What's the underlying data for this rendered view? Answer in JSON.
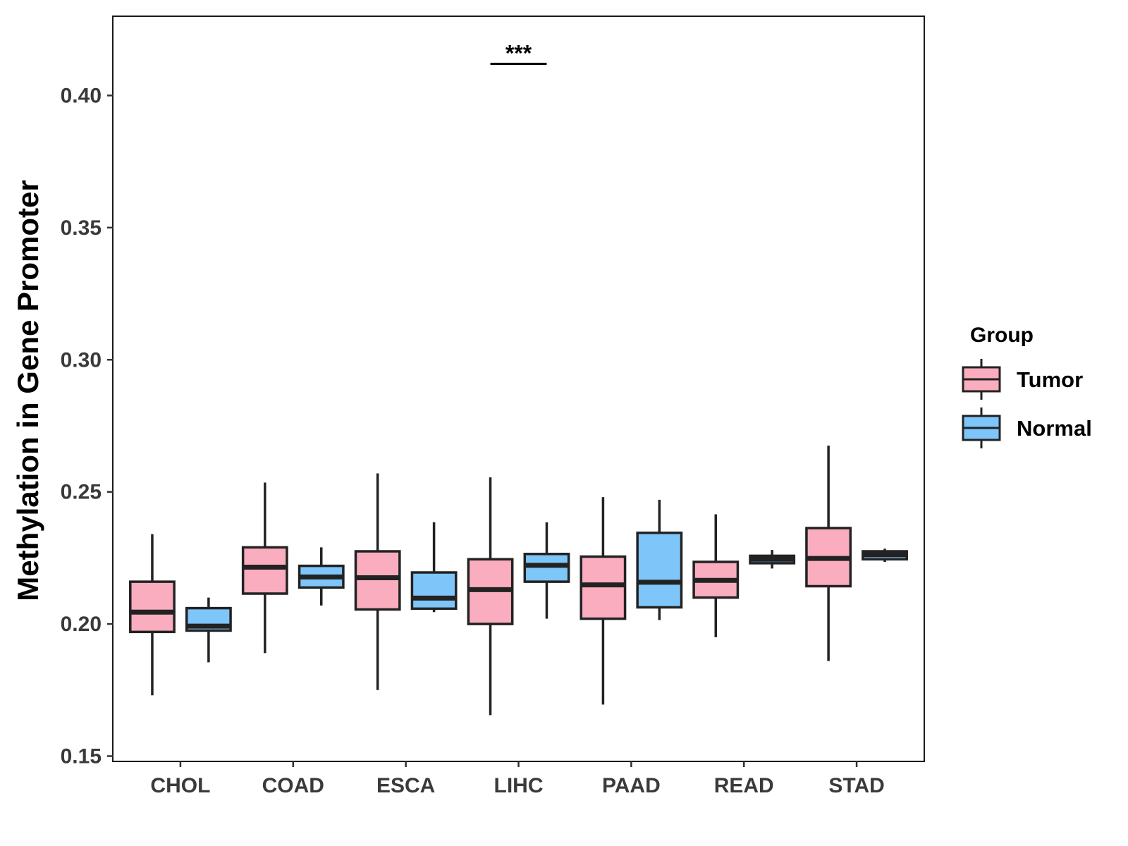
{
  "chart_data": {
    "type": "boxplot",
    "title": "",
    "xlabel": "",
    "ylabel": "Methylation in Gene Promoter",
    "ylim": [
      0.148,
      0.43
    ],
    "yticks": [
      "0.15",
      "0.20",
      "0.25",
      "0.30",
      "0.35",
      "0.40"
    ],
    "ytick_values": [
      0.15,
      0.2,
      0.25,
      0.3,
      0.35,
      0.4
    ],
    "categories": [
      "CHOL",
      "COAD",
      "ESCA",
      "LIHC",
      "PAAD",
      "READ",
      "STAD"
    ],
    "grid": false,
    "legend": {
      "title": "Group",
      "position": "right",
      "entries": [
        {
          "name": "Tumor",
          "color": "#f9adbf"
        },
        {
          "name": "Normal",
          "color": "#7ec5f9"
        }
      ]
    },
    "series": [
      {
        "name": "Tumor",
        "color": "#f9adbf",
        "boxes": [
          {
            "category": "CHOL",
            "whisker_low": 0.173,
            "q1": 0.197,
            "median": 0.2045,
            "q3": 0.216,
            "whisker_high": 0.234
          },
          {
            "category": "COAD",
            "whisker_low": 0.189,
            "q1": 0.2115,
            "median": 0.2215,
            "q3": 0.229,
            "whisker_high": 0.2535
          },
          {
            "category": "ESCA",
            "whisker_low": 0.175,
            "q1": 0.2055,
            "median": 0.2175,
            "q3": 0.2275,
            "whisker_high": 0.257
          },
          {
            "category": "LIHC",
            "whisker_low": 0.1655,
            "q1": 0.2,
            "median": 0.213,
            "q3": 0.2245,
            "whisker_high": 0.2555
          },
          {
            "category": "PAAD",
            "whisker_low": 0.1695,
            "q1": 0.202,
            "median": 0.2148,
            "q3": 0.2255,
            "whisker_high": 0.248
          },
          {
            "category": "READ",
            "whisker_low": 0.195,
            "q1": 0.21,
            "median": 0.2165,
            "q3": 0.2235,
            "whisker_high": 0.2415
          },
          {
            "category": "STAD",
            "whisker_low": 0.186,
            "q1": 0.2143,
            "median": 0.2248,
            "q3": 0.2363,
            "whisker_high": 0.2675
          }
        ]
      },
      {
        "name": "Normal",
        "color": "#7ec5f9",
        "boxes": [
          {
            "category": "CHOL",
            "whisker_low": 0.1855,
            "q1": 0.1975,
            "median": 0.1992,
            "q3": 0.206,
            "whisker_high": 0.21
          },
          {
            "category": "COAD",
            "whisker_low": 0.207,
            "q1": 0.2138,
            "median": 0.2178,
            "q3": 0.222,
            "whisker_high": 0.229
          },
          {
            "category": "ESCA",
            "whisker_low": 0.2045,
            "q1": 0.2058,
            "median": 0.2098,
            "q3": 0.2195,
            "whisker_high": 0.2385
          },
          {
            "category": "LIHC",
            "whisker_low": 0.202,
            "q1": 0.216,
            "median": 0.2222,
            "q3": 0.2265,
            "whisker_high": 0.2385
          },
          {
            "category": "PAAD",
            "whisker_low": 0.2015,
            "q1": 0.2063,
            "median": 0.2158,
            "q3": 0.2345,
            "whisker_high": 0.247
          },
          {
            "category": "READ",
            "whisker_low": 0.221,
            "q1": 0.223,
            "median": 0.2245,
            "q3": 0.2258,
            "whisker_high": 0.228
          },
          {
            "category": "STAD",
            "whisker_low": 0.2235,
            "q1": 0.2245,
            "median": 0.2262,
            "q3": 0.2275,
            "whisker_high": 0.2285
          }
        ]
      }
    ],
    "annotations": [
      {
        "category": "LIHC",
        "label": "***",
        "y": 0.412
      }
    ]
  }
}
